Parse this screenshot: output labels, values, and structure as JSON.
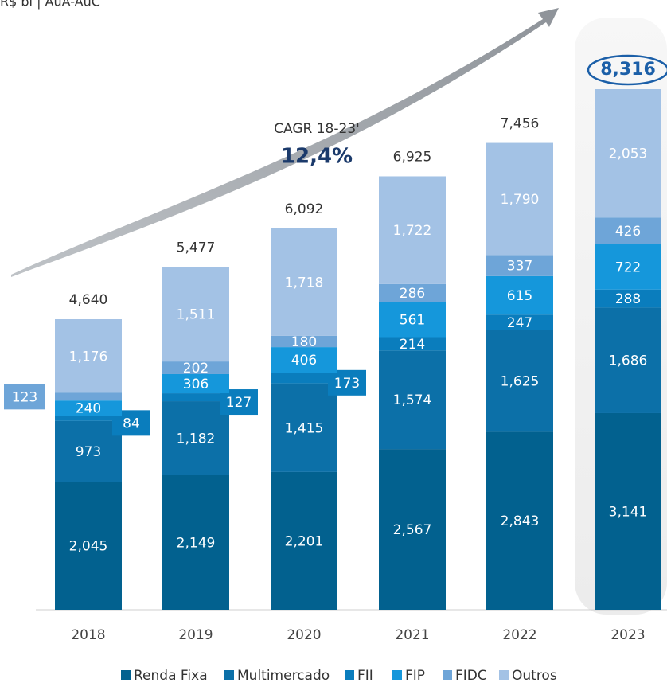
{
  "chart_data": {
    "type": "stacked_bar",
    "subtitle": "R$ bi | AuA-AuC",
    "annotation_label": "CAGR 18-23'",
    "annotation_value": "12,4%",
    "categories": [
      "2018",
      "2019",
      "2020",
      "2021",
      "2022",
      "2023"
    ],
    "series": [
      {
        "name": "Renda Fixa",
        "color": "#02618f",
        "values": [
          2045,
          2149,
          2201,
          2567,
          2843,
          3141
        ],
        "value_labels": [
          "2,045",
          "2,149",
          "2,201",
          "2,567",
          "2,843",
          "3,141"
        ]
      },
      {
        "name": "Multimercado",
        "color": "#0c70a8",
        "values": [
          973,
          1182,
          1415,
          1574,
          1625,
          1686
        ],
        "value_labels": [
          "973",
          "1,182",
          "1,415",
          "1,574",
          "1,625",
          "1,686"
        ]
      },
      {
        "name": "FII",
        "color": "#0a7dbd",
        "values": [
          84,
          127,
          173,
          214,
          247,
          288
        ],
        "value_labels": [
          "84",
          "127",
          "173",
          "214",
          "247",
          "288"
        ]
      },
      {
        "name": "FIP",
        "color": "#1597db",
        "values": [
          240,
          306,
          406,
          561,
          615,
          722
        ],
        "value_labels": [
          "240",
          "306",
          "406",
          "561",
          "615",
          "722"
        ]
      },
      {
        "name": "FIDC",
        "color": "#6ea5d8",
        "values": [
          123,
          202,
          180,
          286,
          337,
          426
        ],
        "value_labels": [
          "123",
          "202",
          "180",
          "286",
          "337",
          "426"
        ]
      },
      {
        "name": "Outros",
        "color": "#a3c2e5",
        "values": [
          1176,
          1511,
          1718,
          1722,
          1790,
          2053
        ],
        "value_labels": [
          "1,176",
          "1,511",
          "1,718",
          "1,722",
          "1,790",
          "2,053"
        ]
      }
    ],
    "totals": [
      4640,
      5477,
      6092,
      6925,
      7456,
      8316
    ],
    "totals_labels": [
      "4,640",
      "5,477",
      "6,092",
      "6,925",
      "7,456",
      "8,316"
    ]
  }
}
